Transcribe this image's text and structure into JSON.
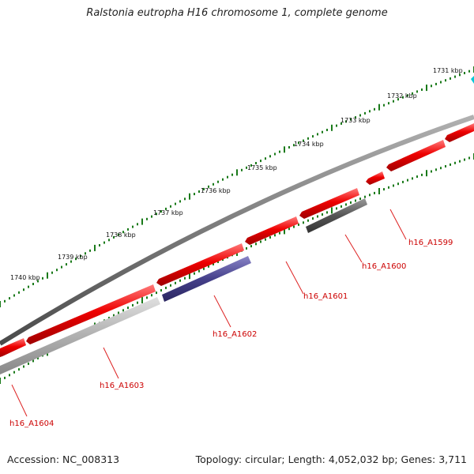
{
  "title": "Ralstonia eutropha H16 chromosome 1, complete genome",
  "footer": {
    "accession": "Accession: NC_008313",
    "summary": "Topology: circular; Length: 4,052,032 bp; Genes: 3,711"
  },
  "scale_labels": [
    "1731 kbp",
    "1732 kbp",
    "1733 kbp",
    "1734 kbp",
    "1735 kbp",
    "1736 kbp",
    "1737 kbp",
    "1738 kbp",
    "1739 kbp",
    "1740 kbp"
  ],
  "gene_labels": [
    "h16_A1599",
    "h16_A1600",
    "h16_A1601",
    "h16_A1602",
    "h16_A1603",
    "h16_A1604"
  ],
  "colors": {
    "backbone": "#7a7a7a",
    "forward_cds": "#ee0000",
    "tick": "#1a7a1a",
    "label": "#cc0000",
    "gray_gene": "#555555",
    "blue_gene": "#45408a",
    "light_gene": "#b0b0b0",
    "cyan_marker": "#00c8d8"
  }
}
